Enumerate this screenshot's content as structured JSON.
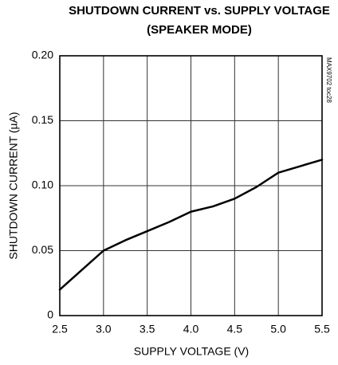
{
  "chart_data": {
    "type": "line",
    "title": "SHUTDOWN CURRENT vs. SUPPLY VOLTAGE",
    "subtitle": "(SPEAKER MODE)",
    "x_label": "SUPPLY VOLTAGE (V)",
    "y_label": "SHUTDOWN CURRENT (µA)",
    "annotation": "MAX9702 toc28",
    "x": [
      2.5,
      2.75,
      3.0,
      3.25,
      3.5,
      3.75,
      4.0,
      4.25,
      4.5,
      4.75,
      5.0,
      5.25,
      5.5
    ],
    "values": [
      0.02,
      0.035,
      0.05,
      0.058,
      0.065,
      0.072,
      0.08,
      0.084,
      0.09,
      0.099,
      0.11,
      0.115,
      0.12
    ],
    "color": "#000000",
    "xlim": [
      2.5,
      5.5
    ],
    "xticks": [
      2.5,
      {
        "value": 3,
        "label": "3.0"
      },
      3.5,
      {
        "value": 4,
        "label": "4.0"
      },
      4.5,
      {
        "value": 5,
        "label": "5.0"
      },
      5.5
    ],
    "ylim": [
      0,
      0.2
    ],
    "yticks": [
      0,
      0.05,
      {
        "value": 0.1,
        "label": "0.10"
      },
      0.15,
      {
        "value": 0.2,
        "label": "0.20"
      }
    ],
    "grid": true
  }
}
